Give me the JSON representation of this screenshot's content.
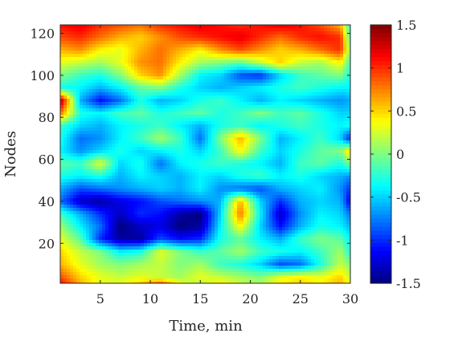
{
  "chart_data": {
    "type": "heatmap",
    "title": "",
    "xlabel": "Time, min",
    "ylabel": "Nodes",
    "xlim": [
      1,
      30
    ],
    "ylim": [
      1,
      124
    ],
    "x_ticks": [
      5,
      10,
      15,
      20,
      25,
      30
    ],
    "y_ticks": [
      20,
      40,
      60,
      80,
      100,
      120
    ],
    "colorbar": {
      "colormap": "jet",
      "clim": [
        -1.5,
        1.5
      ],
      "ticks": [
        1.5,
        1,
        0.5,
        0,
        -0.5,
        -1,
        -1.5
      ],
      "position": "right"
    },
    "x": [
      1,
      3,
      5,
      7,
      9,
      11,
      13,
      15,
      17,
      19,
      21,
      23,
      25,
      27,
      29,
      30
    ],
    "y": [
      124,
      118,
      112,
      106,
      100,
      94,
      88,
      82,
      76,
      70,
      64,
      58,
      52,
      46,
      40,
      34,
      28,
      22,
      16,
      10,
      4,
      1
    ],
    "z": [
      [
        1.1,
        1.2,
        1.0,
        0.9,
        0.8,
        1.0,
        1.1,
        1.2,
        1.1,
        1.0,
        1.1,
        1.2,
        1.1,
        0.9,
        0.6,
        -0.3
      ],
      [
        0.9,
        1.0,
        0.8,
        0.6,
        0.5,
        0.7,
        0.9,
        1.0,
        1.1,
        1.2,
        1.0,
        0.8,
        1.0,
        1.1,
        1.0,
        -0.2
      ],
      [
        0.6,
        0.7,
        0.4,
        0.3,
        0.6,
        0.8,
        0.6,
        0.4,
        0.7,
        0.9,
        0.7,
        0.5,
        0.6,
        0.8,
        1.0,
        0.0
      ],
      [
        0.3,
        0.2,
        0.1,
        0.3,
        0.7,
        0.8,
        0.4,
        0.1,
        0.0,
        -0.1,
        0.2,
        0.5,
        0.2,
        0.1,
        0.4,
        -0.2
      ],
      [
        0.0,
        -0.2,
        -0.3,
        0.0,
        0.5,
        0.7,
        0.1,
        -0.4,
        -0.5,
        -0.9,
        -1.0,
        -0.5,
        -0.2,
        -0.1,
        0.0,
        -0.3
      ],
      [
        -0.3,
        -0.4,
        -0.6,
        -0.4,
        -0.1,
        0.0,
        -0.3,
        -0.5,
        -0.6,
        -0.5,
        -0.4,
        -0.3,
        -0.2,
        -0.3,
        -0.4,
        -0.4
      ],
      [
        1.4,
        -0.6,
        -1.1,
        -0.8,
        -0.3,
        -0.6,
        -0.5,
        -0.3,
        -0.2,
        -0.4,
        -0.6,
        -0.4,
        -0.5,
        -0.6,
        -0.7,
        -0.6
      ],
      [
        0.8,
        -0.3,
        -0.4,
        -0.2,
        -0.1,
        -0.3,
        -0.2,
        -0.1,
        -0.3,
        -0.2,
        0.0,
        -0.2,
        -0.1,
        -0.3,
        -0.5,
        -0.5
      ],
      [
        -0.2,
        -0.5,
        -0.6,
        -0.4,
        -0.3,
        -0.2,
        -0.4,
        -0.6,
        -0.3,
        -0.2,
        -0.4,
        -0.3,
        -0.2,
        -0.3,
        -0.4,
        -0.3
      ],
      [
        -0.3,
        -0.8,
        -0.7,
        -0.4,
        -0.2,
        0.1,
        -0.2,
        -0.8,
        0.0,
        0.6,
        0.0,
        -0.6,
        -0.4,
        -0.2,
        -0.5,
        -1.1
      ],
      [
        -0.4,
        -0.7,
        -0.5,
        -0.3,
        -0.5,
        -0.4,
        -0.3,
        -0.5,
        -0.2,
        0.4,
        -0.2,
        -0.5,
        -0.3,
        -0.1,
        0.0,
        0.5
      ],
      [
        -0.1,
        -0.2,
        0.3,
        -0.5,
        -0.3,
        -0.8,
        -0.4,
        -0.3,
        -0.2,
        -0.3,
        -0.4,
        -0.6,
        -0.2,
        -0.1,
        -0.3,
        0.0
      ],
      [
        -0.3,
        -0.4,
        -0.3,
        -0.6,
        -0.4,
        -0.5,
        -0.6,
        -0.4,
        -0.5,
        -0.3,
        -0.2,
        -0.4,
        -0.3,
        -0.5,
        -0.6,
        -0.7
      ],
      [
        -0.6,
        -0.9,
        -0.8,
        -0.7,
        -0.6,
        -0.5,
        -0.6,
        -0.4,
        -0.7,
        -0.8,
        -0.9,
        -0.6,
        -0.5,
        -0.4,
        -0.7,
        -1.0
      ],
      [
        -0.8,
        -1.3,
        -1.4,
        -1.2,
        -1.1,
        -0.9,
        -0.8,
        -0.7,
        -0.6,
        0.6,
        -0.5,
        -1.0,
        -0.6,
        -0.5,
        -0.6,
        -1.2
      ],
      [
        -0.2,
        -0.6,
        -1.0,
        -1.3,
        -1.0,
        -1.1,
        -1.4,
        -1.5,
        -0.5,
        0.8,
        -0.4,
        -1.3,
        -0.7,
        -0.4,
        -0.5,
        -0.8
      ],
      [
        0.1,
        -0.4,
        -0.8,
        -1.5,
        -1.3,
        -1.2,
        -1.5,
        -1.4,
        -0.4,
        0.4,
        -0.5,
        -1.1,
        -0.6,
        -0.3,
        -0.4,
        -0.6
      ],
      [
        0.3,
        -0.1,
        -1.0,
        -1.4,
        -1.4,
        -0.9,
        -1.1,
        -1.0,
        -0.3,
        -0.1,
        -0.4,
        -0.6,
        -0.2,
        0.0,
        -0.1,
        -0.4
      ],
      [
        0.5,
        0.2,
        0.0,
        -0.4,
        -0.3,
        0.3,
        0.0,
        -0.2,
        -0.1,
        0.1,
        -0.2,
        -0.3,
        -0.4,
        -0.2,
        0.1,
        -0.3
      ],
      [
        0.6,
        0.3,
        0.1,
        0.0,
        0.1,
        0.2,
        0.0,
        0.1,
        -0.2,
        -0.3,
        -0.5,
        -0.9,
        -0.8,
        -0.3,
        0.2,
        0.0
      ],
      [
        0.9,
        0.5,
        0.3,
        0.2,
        0.3,
        0.2,
        0.1,
        0.3,
        0.2,
        0.1,
        0.0,
        0.3,
        0.4,
        0.3,
        0.5,
        0.2
      ],
      [
        1.1,
        0.6,
        0.3,
        0.3,
        0.5,
        0.8,
        0.3,
        0.2,
        0.4,
        0.2,
        0.1,
        0.4,
        0.5,
        0.4,
        0.6,
        0.3
      ]
    ]
  }
}
